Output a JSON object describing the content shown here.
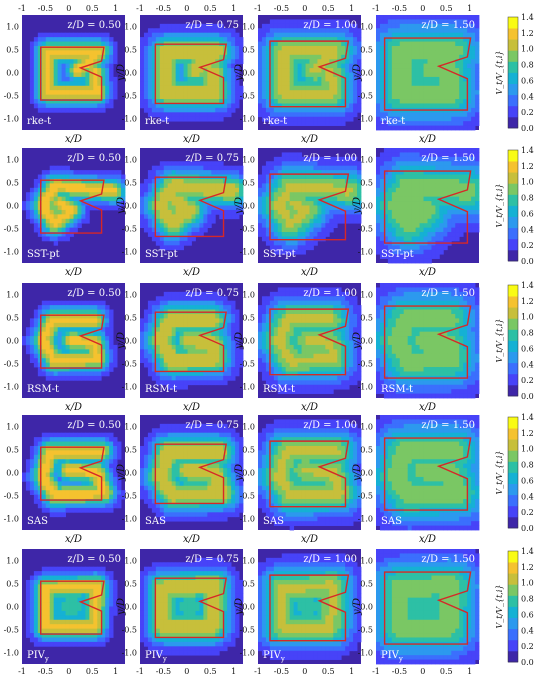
{
  "chart_data": {
    "type": "heatmap",
    "quantity_label": "V_t/V_{t,i}",
    "colorbar": {
      "range": [
        0,
        1.4
      ],
      "ticks": [
        "0.0",
        "0.2",
        "0.4",
        "0.6",
        "0.8",
        "1.0",
        "1.2",
        "1.4"
      ],
      "colormap": [
        "#3e26a8",
        "#4743f8",
        "#3b6ffd",
        "#2c99ee",
        "#15b1d4",
        "#2dc0a5",
        "#7ac764",
        "#c7bf3b",
        "#f5c22f",
        "#f9fb14"
      ]
    },
    "contour_color": "#d62728",
    "background_color": "#3e26a8",
    "x_axis": {
      "label": "x/D",
      "range": [
        -1.0,
        1.2
      ],
      "ticks": [
        "-1",
        "-0.5",
        "0",
        "0.5",
        "1"
      ]
    },
    "y_axis": {
      "label": "y/D",
      "range": [
        -1.25,
        1.25
      ],
      "ticks": [
        "1.0",
        "0.5",
        "0.0",
        "-0.5",
        "-1.0"
      ]
    },
    "columns": [
      "z/D = 0.50",
      "z/D = 0.75",
      "z/D = 1.00",
      "z/D = 1.50"
    ],
    "rows": [
      "rke-t",
      "SST-pt",
      "RSM-t",
      "SAS",
      "PIV"
    ],
    "row_subscripts": [
      "",
      "",
      "",
      "",
      "y"
    ]
  }
}
